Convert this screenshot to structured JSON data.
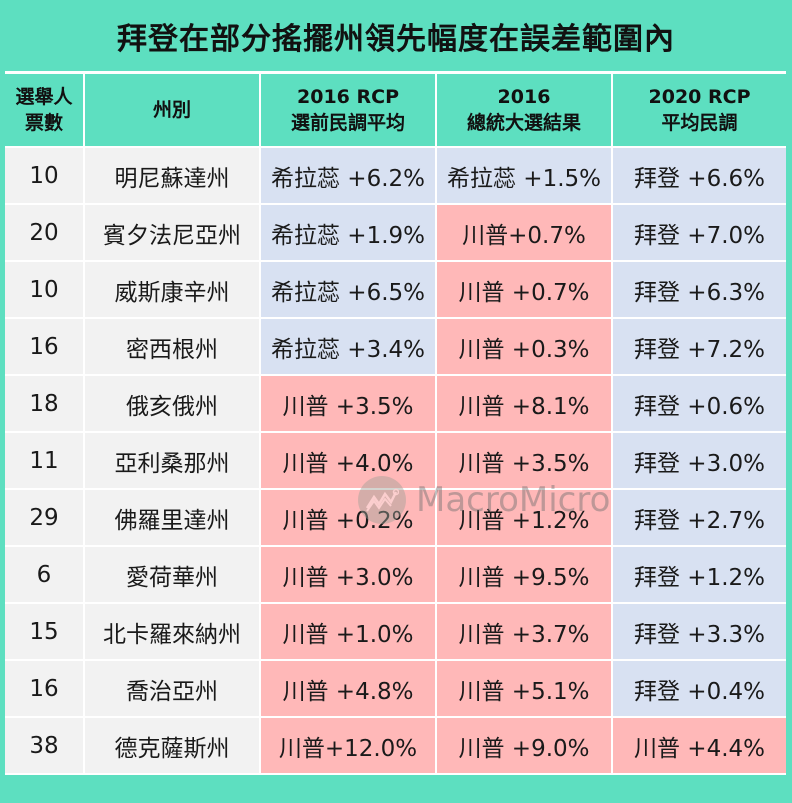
{
  "title": "拜登在部分搖擺州領先幅度在誤差範圍內",
  "colors": {
    "background_teal": "#5ddfc0",
    "democrat_cell": "#d8e1f2",
    "republican_cell": "#ffb8b8",
    "neutral_cell": "#f2f2f2"
  },
  "table": {
    "headers": [
      {
        "line1": "選舉人",
        "line2": "票數"
      },
      {
        "line1": "州別",
        "line2": ""
      },
      {
        "line1": "2016 RCP",
        "line2": "選前民調平均"
      },
      {
        "line1": "2016",
        "line2": "總統大選結果"
      },
      {
        "line1": "2020 RCP",
        "line2": "平均民調"
      }
    ],
    "rows": [
      {
        "votes": "10",
        "state": "明尼蘇達州",
        "rcp2016": "希拉蕊 +6.2%",
        "rcp2016_party": "dem",
        "result2016": "希拉蕊 +1.5%",
        "result2016_party": "dem",
        "rcp2020": "拜登 +6.6%",
        "rcp2020_party": "dem"
      },
      {
        "votes": "20",
        "state": "賓夕法尼亞州",
        "rcp2016": "希拉蕊 +1.9%",
        "rcp2016_party": "dem",
        "result2016": "川普+0.7%",
        "result2016_party": "rep",
        "rcp2020": "拜登 +7.0%",
        "rcp2020_party": "dem"
      },
      {
        "votes": "10",
        "state": "威斯康辛州",
        "rcp2016": "希拉蕊 +6.5%",
        "rcp2016_party": "dem",
        "result2016": "川普 +0.7%",
        "result2016_party": "rep",
        "rcp2020": "拜登 +6.3%",
        "rcp2020_party": "dem"
      },
      {
        "votes": "16",
        "state": "密西根州",
        "rcp2016": "希拉蕊 +3.4%",
        "rcp2016_party": "dem",
        "result2016": "川普 +0.3%",
        "result2016_party": "rep",
        "rcp2020": "拜登 +7.2%",
        "rcp2020_party": "dem"
      },
      {
        "votes": "18",
        "state": "俄亥俄州",
        "rcp2016": "川普 +3.5%",
        "rcp2016_party": "rep",
        "result2016": "川普 +8.1%",
        "result2016_party": "rep",
        "rcp2020": "拜登 +0.6%",
        "rcp2020_party": "dem"
      },
      {
        "votes": "11",
        "state": "亞利桑那州",
        "rcp2016": "川普 +4.0%",
        "rcp2016_party": "rep",
        "result2016": "川普 +3.5%",
        "result2016_party": "rep",
        "rcp2020": "拜登 +3.0%",
        "rcp2020_party": "dem"
      },
      {
        "votes": "29",
        "state": "佛羅里達州",
        "rcp2016": "川普 +0.2%",
        "rcp2016_party": "rep",
        "result2016": "川普 +1.2%",
        "result2016_party": "rep",
        "rcp2020": "拜登 +2.7%",
        "rcp2020_party": "dem"
      },
      {
        "votes": "6",
        "state": "愛荷華州",
        "rcp2016": "川普 +3.0%",
        "rcp2016_party": "rep",
        "result2016": "川普 +9.5%",
        "result2016_party": "rep",
        "rcp2020": "拜登 +1.2%",
        "rcp2020_party": "dem"
      },
      {
        "votes": "15",
        "state": "北卡羅來納州",
        "rcp2016": "川普 +1.0%",
        "rcp2016_party": "rep",
        "result2016": "川普 +3.7%",
        "result2016_party": "rep",
        "rcp2020": "拜登 +3.3%",
        "rcp2020_party": "dem"
      },
      {
        "votes": "16",
        "state": "喬治亞州",
        "rcp2016": "川普 +4.8%",
        "rcp2016_party": "rep",
        "result2016": "川普 +5.1%",
        "result2016_party": "rep",
        "rcp2020": "拜登 +0.4%",
        "rcp2020_party": "dem"
      },
      {
        "votes": "38",
        "state": "德克薩斯州",
        "rcp2016": "川普+12.0%",
        "rcp2016_party": "rep",
        "result2016": "川普 +9.0%",
        "result2016_party": "rep",
        "rcp2020": "川普 +4.4%",
        "rcp2020_party": "rep"
      }
    ]
  },
  "watermark": {
    "icon": "macromicro-logo-icon",
    "text": "MacroMicro"
  }
}
